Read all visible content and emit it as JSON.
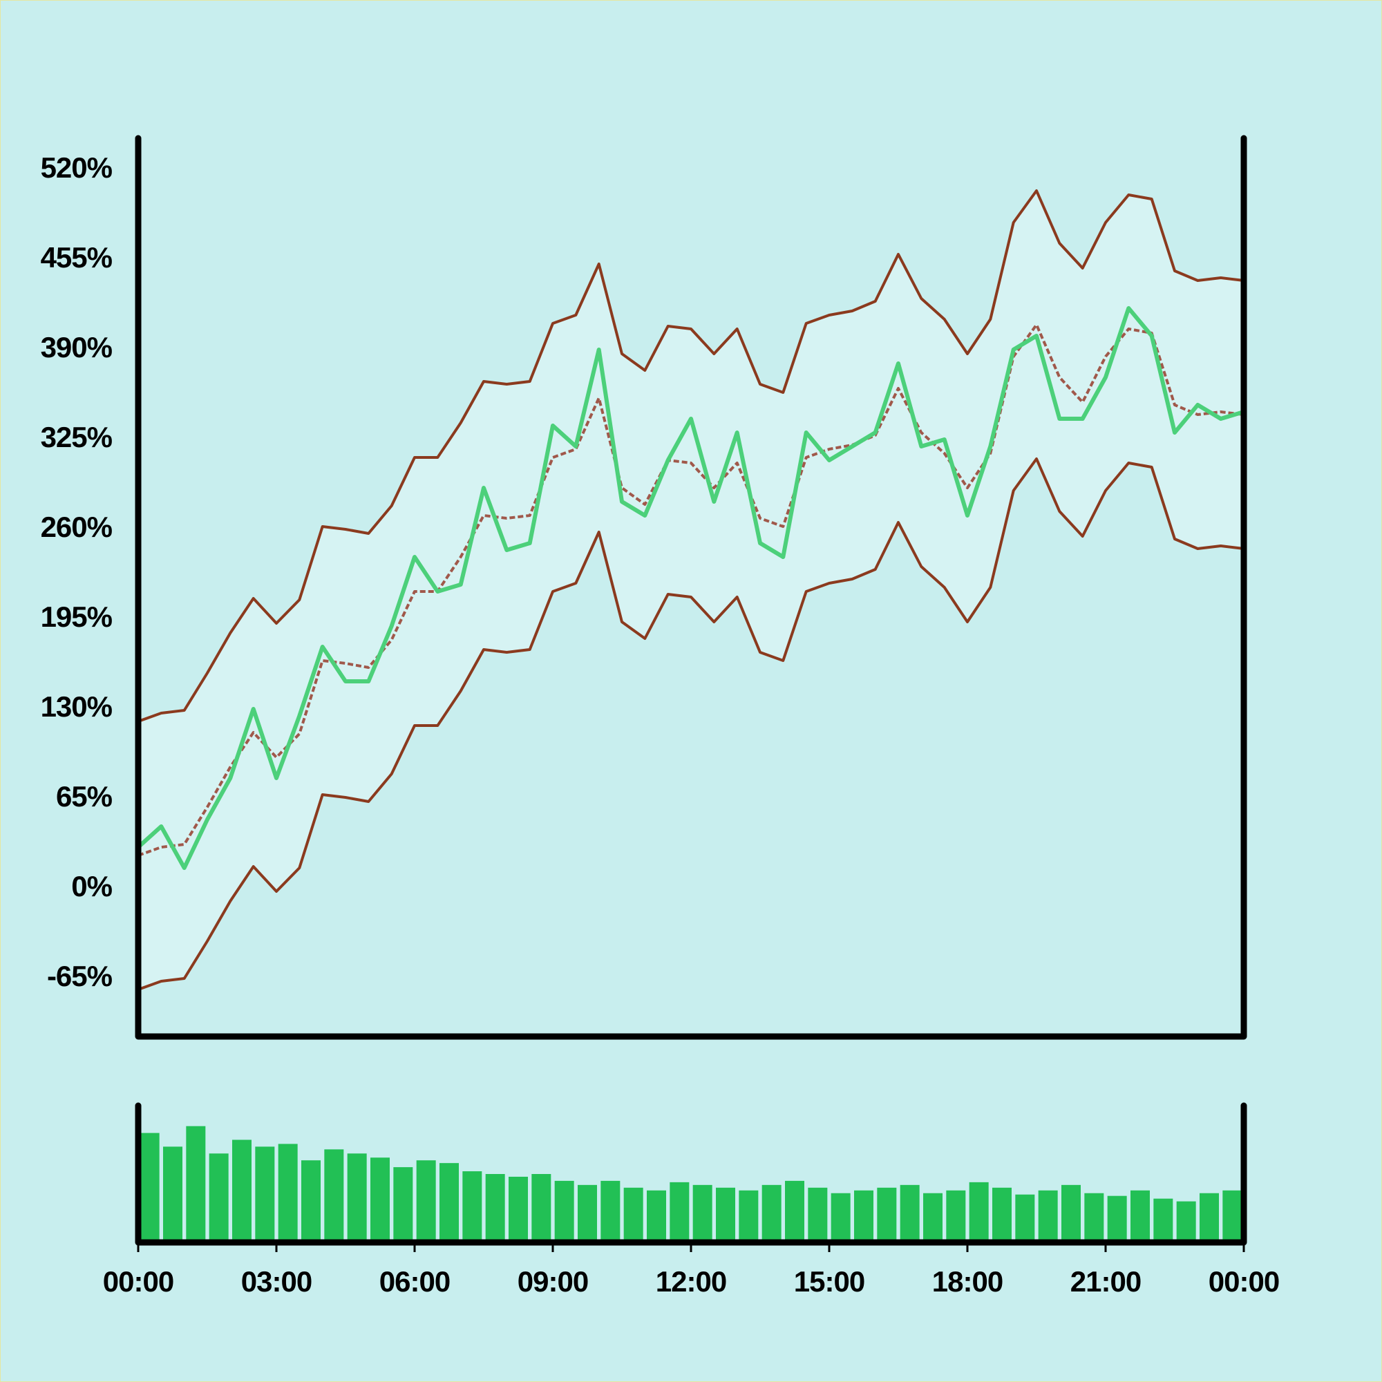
{
  "chart_data": [
    {
      "type": "line",
      "x": [
        0,
        0.5,
        1,
        1.5,
        2,
        2.5,
        3,
        3.5,
        4,
        4.5,
        5,
        5.5,
        6,
        6.5,
        7,
        7.5,
        8,
        8.5,
        9,
        9.5,
        10,
        10.5,
        11,
        11.5,
        12,
        12.5,
        13,
        13.5,
        14,
        14.5,
        15,
        15.5,
        16,
        16.5,
        17,
        17.5,
        18,
        18.5,
        19,
        19.5,
        20,
        20.5,
        21,
        21.5,
        22,
        22.5,
        23,
        23.5,
        24
      ],
      "series": [
        {
          "color": "#4cd07a",
          "dashed": false,
          "values": [
            30,
            45,
            15,
            50,
            80,
            130,
            80,
            125,
            175,
            150,
            150,
            190,
            240,
            215,
            220,
            290,
            245,
            250,
            335,
            320,
            390,
            280,
            270,
            310,
            340,
            280,
            330,
            250,
            240,
            330,
            310,
            320,
            330,
            380,
            320,
            325,
            270,
            320,
            390,
            400,
            340,
            340,
            370,
            420,
            400,
            330,
            350,
            340,
            345
          ]
        },
        {
          "color": "#8b3a1e",
          "dashed": false,
          "values": [
            121,
            127,
            129,
            156,
            185,
            210,
            192,
            209,
            262,
            260,
            257,
            277,
            312,
            312,
            337,
            367,
            365,
            367,
            409,
            415,
            452,
            387,
            375,
            407,
            405,
            387,
            405,
            365,
            359,
            409,
            415,
            418,
            425,
            459,
            427,
            412,
            387,
            412,
            482,
            505,
            467,
            449,
            482,
            502,
            499,
            447,
            440,
            442,
            440
          ]
        },
        {
          "color": "#a0584a",
          "dashed": true,
          "values": [
            24,
            30,
            32,
            59,
            88,
            113,
            95,
            112,
            165,
            163,
            160,
            180,
            215,
            215,
            240,
            270,
            268,
            270,
            312,
            318,
            355,
            290,
            278,
            310,
            308,
            290,
            308,
            268,
            262,
            312,
            318,
            321,
            328,
            362,
            330,
            315,
            290,
            315,
            385,
            408,
            370,
            352,
            385,
            405,
            402,
            350,
            343,
            345,
            343
          ]
        },
        {
          "color": "#8b3a1e",
          "dashed": false,
          "values": [
            -73,
            -67,
            -65,
            -38,
            -9,
            16,
            -2,
            15,
            68,
            66,
            63,
            83,
            118,
            118,
            143,
            173,
            171,
            173,
            215,
            221,
            258,
            193,
            181,
            213,
            211,
            193,
            211,
            171,
            165,
            215,
            221,
            224,
            231,
            265,
            233,
            218,
            193,
            218,
            288,
            311,
            273,
            255,
            288,
            308,
            305,
            253,
            246,
            248,
            246
          ]
        }
      ],
      "band": [
        1,
        3
      ],
      "band_color": "#d6f3f3",
      "xlim": [
        0,
        24
      ],
      "ylim": [
        -107,
        543
      ],
      "yticks": [
        {
          "value": 520,
          "label": "520%"
        },
        {
          "value": 455,
          "label": "455%"
        },
        {
          "value": 390,
          "label": "390%"
        },
        {
          "value": 325,
          "label": "325%"
        },
        {
          "value": 260,
          "label": "260%"
        },
        {
          "value": 195,
          "label": "195%"
        },
        {
          "value": 130,
          "label": "130%"
        },
        {
          "value": 65,
          "label": "65%"
        },
        {
          "value": 0,
          "label": "0%"
        },
        {
          "value": -65,
          "label": "-65%"
        }
      ]
    },
    {
      "type": "bar",
      "color": "#22c055",
      "x": [
        0.25,
        0.75,
        1.25,
        1.75,
        2.25,
        2.75,
        3.25,
        3.75,
        4.25,
        4.75,
        5.25,
        5.75,
        6.25,
        6.75,
        7.25,
        7.75,
        8.25,
        8.75,
        9.25,
        9.75,
        10.25,
        10.75,
        11.25,
        11.75,
        12.25,
        12.75,
        13.25,
        13.75,
        14.25,
        14.75,
        15.25,
        15.75,
        16.25,
        16.75,
        17.25,
        17.75,
        18.25,
        18.75,
        19.25,
        19.75,
        20.25,
        20.75,
        21.25,
        21.75,
        22.25,
        22.75,
        23.25,
        23.75
      ],
      "values": [
        80,
        70,
        85,
        65,
        75,
        70,
        72,
        60,
        68,
        65,
        62,
        55,
        60,
        58,
        52,
        50,
        48,
        50,
        45,
        42,
        45,
        40,
        38,
        44,
        42,
        40,
        38,
        42,
        45,
        40,
        36,
        38,
        40,
        42,
        36,
        38,
        44,
        40,
        35,
        38,
        42,
        36,
        34,
        38,
        32,
        30,
        36,
        38
      ],
      "bar_width": 0.42,
      "xlim": [
        0,
        24
      ],
      "ylim": [
        0,
        100
      ],
      "xticks": [
        {
          "value": 0,
          "label": "00:00"
        },
        {
          "value": 3,
          "label": "03:00"
        },
        {
          "value": 6,
          "label": "06:00"
        },
        {
          "value": 9,
          "label": "09:00"
        },
        {
          "value": 12,
          "label": "12:00"
        },
        {
          "value": 15,
          "label": "15:00"
        },
        {
          "value": 18,
          "label": "18:00"
        },
        {
          "value": 21,
          "label": "21:00"
        },
        {
          "value": 24,
          "label": "00:00"
        }
      ]
    }
  ]
}
